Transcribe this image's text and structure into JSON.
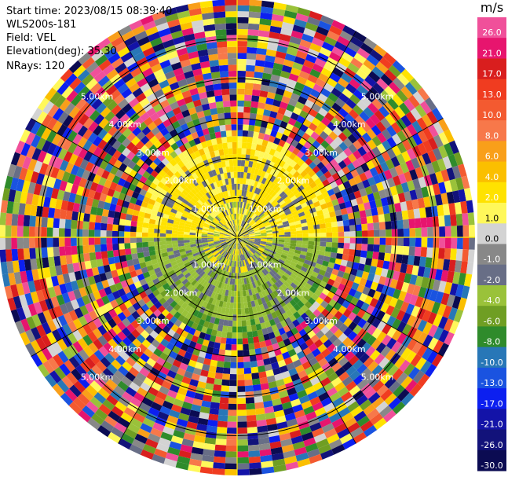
{
  "info": {
    "start_time": "Start time: 2023/08/15 08:39:40",
    "instrument": "WLS200s-181",
    "field": "Field: VEL",
    "elevation": "Elevation(deg): 35.30",
    "nrays": "NRays: 120"
  },
  "colorbar": {
    "unit": "m/s",
    "levels": [
      "26.0",
      "21.0",
      "17.0",
      "13.0",
      "10.0",
      "8.0",
      "6.0",
      "4.0",
      "2.0",
      "1.0",
      "0.0",
      "-1.0",
      "-2.0",
      "-4.0",
      "-6.0",
      "-8.0",
      "-10.0",
      "-13.0",
      "-17.0",
      "-21.0",
      "-26.0",
      "-30.0"
    ],
    "colors": [
      "#f0509a",
      "#e7156e",
      "#d91e1e",
      "#f03c20",
      "#f35a30",
      "#f7784a",
      "#f99f1a",
      "#fbbf00",
      "#ffe200",
      "#fff85a",
      "#d3d3d3",
      "#888888",
      "#686e86",
      "#9ac23a",
      "#6f9e23",
      "#2f8b2b",
      "#2877b7",
      "#1a53e0",
      "#0c1ff0",
      "#1313a8",
      "#12127a",
      "#0b0b52"
    ]
  },
  "chart_data": {
    "type": "ppi",
    "field": "VEL",
    "nrays": 120,
    "elevation_deg": 35.3,
    "range_rings": [
      "1.00km",
      "2.00km",
      "3.00km",
      "4.00km",
      "5.00km"
    ],
    "range_ring_km": [
      1,
      2,
      3,
      4,
      5
    ],
    "max_range_km": 6.0,
    "inner_zone_km": 2.1,
    "noise_start_km": 2.55
  }
}
